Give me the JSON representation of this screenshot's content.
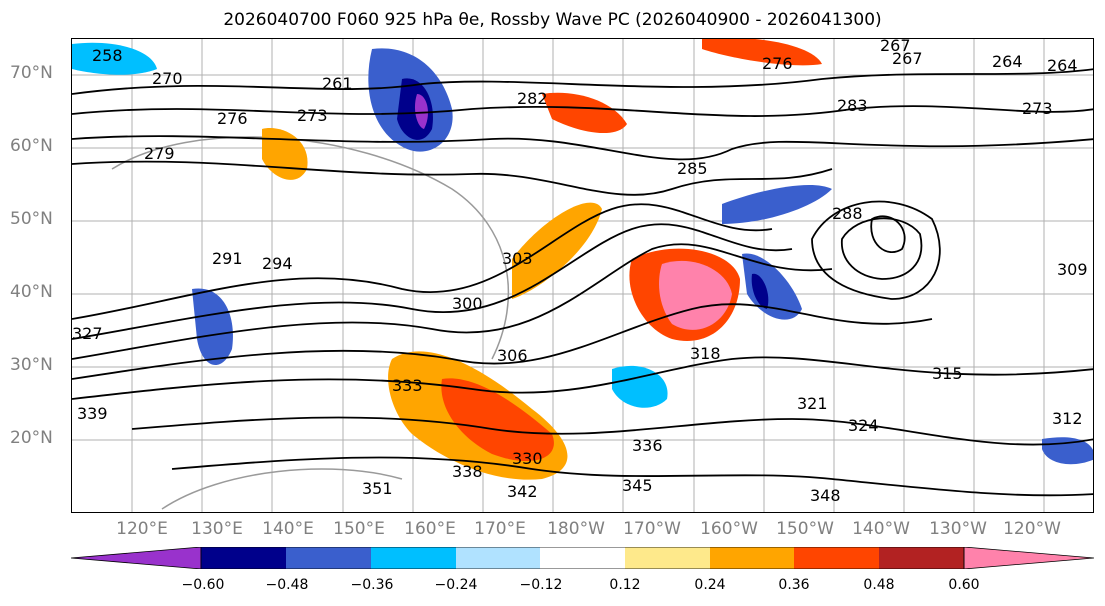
{
  "title": "2026040700 F060 925 hPa θe, Rossby Wave PC (2026040900 - 2026041300)",
  "lat_labels": [
    "70°N",
    "60°N",
    "50°N",
    "40°N",
    "30°N",
    "20°N"
  ],
  "lon_labels": [
    "120°E",
    "130°E",
    "140°E",
    "150°E",
    "160°E",
    "170°E",
    "180°W",
    "170°W",
    "160°W",
    "150°W",
    "140°W",
    "130°W",
    "120°W"
  ],
  "colorbar": {
    "colors": [
      "#9932cc",
      "#00008b",
      "#3a5fcd",
      "#00bfff",
      "#b0e2ff",
      "#ffffff",
      "#fee98b",
      "#ffa500",
      "#ff4500",
      "#b22222",
      "#ff82ab"
    ],
    "ticks": [
      "−0.60",
      "−0.48",
      "−0.36",
      "−0.24",
      "−0.12",
      "0.12",
      "0.24",
      "0.36",
      "0.48",
      "0.60"
    ]
  },
  "contour_labels": [
    "258",
    "264",
    "270",
    "276",
    "273",
    "267",
    "261",
    "264",
    "267",
    "273",
    "276",
    "279",
    "282",
    "283",
    "285",
    "288",
    "291",
    "294",
    "300",
    "303",
    "306",
    "309",
    "312",
    "315",
    "318",
    "321",
    "324",
    "327",
    "330",
    "333",
    "336",
    "338",
    "339",
    "342",
    "345",
    "348",
    "351"
  ]
}
